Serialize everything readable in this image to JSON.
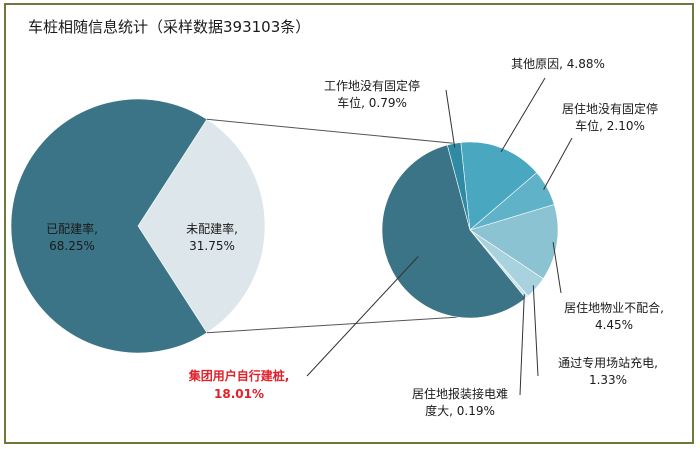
{
  "chart_data": [
    {
      "type": "pie",
      "title": "车桩相随信息统计（采样数据393103条）",
      "slices": [
        {
          "label": "已配建率,",
          "value_text": "68.25%",
          "value": 68.25,
          "color": "#3b7486"
        },
        {
          "label": "未配建率,",
          "value_text": "31.75%",
          "value": 31.75,
          "color": "#dde6ea"
        }
      ]
    },
    {
      "type": "pie",
      "note_label": "集团用户自行建桩,",
      "note_value": "18.01%",
      "note_color": "#e0202a",
      "slices": [
        {
          "label_lines": [
            "其他原因, 4.88%"
          ],
          "value": 4.88,
          "color": "#4aa7c0"
        },
        {
          "label_lines": [
            "居住地没有固定停",
            "车位, 2.10%"
          ],
          "value": 2.1,
          "color": "#5fb2c7"
        },
        {
          "label_lines": [
            "居住地物业不配合,",
            "4.45%"
          ],
          "value": 4.45,
          "color": "#8cc3d2"
        },
        {
          "label_lines": [
            "通过专用场站充电,",
            "1.33%"
          ],
          "value": 1.33,
          "color": "#a8d2dd"
        },
        {
          "label_lines": [
            "居住地报装接电难",
            "度大, 0.19%"
          ],
          "value": 0.19,
          "color": "#c7e2ea"
        },
        {
          "label_lines": [],
          "value": 18.01,
          "color": "#3b7486"
        },
        {
          "label_lines": [
            "工作地没有固定停",
            "车位, 0.79%"
          ],
          "value": 0.79,
          "color": "#2f8aa3"
        }
      ]
    }
  ]
}
